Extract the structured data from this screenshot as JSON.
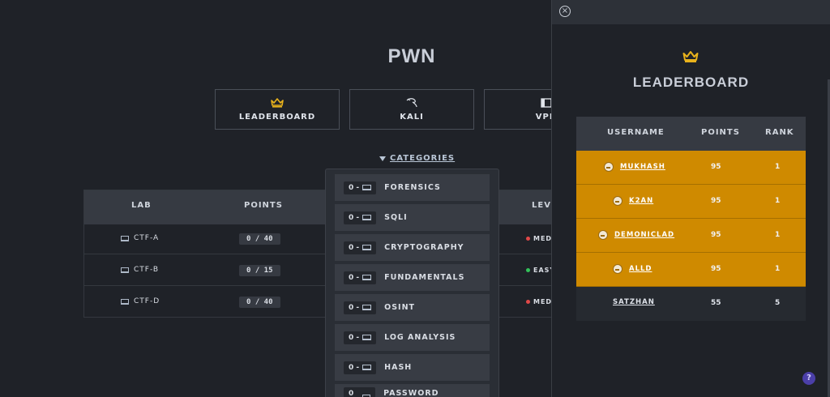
{
  "header": {
    "title": "PWN"
  },
  "nav": [
    {
      "label": "LEADERBOARD",
      "icon": "crown-icon"
    },
    {
      "label": "KALI",
      "icon": "kali-dragon-icon"
    },
    {
      "label": "VPN",
      "icon": "vpn-icon"
    }
  ],
  "categories": {
    "label": "CATEGORIES"
  },
  "labs": {
    "headers": {
      "lab": "LAB",
      "points": "POINTS",
      "level": "LEVEL"
    },
    "rows": [
      {
        "name": "CTF-A",
        "points": "0 / 40",
        "level": "MEDIUM",
        "level_color": "#e04848"
      },
      {
        "name": "CTF-B",
        "points": "0 / 15",
        "level": "EASY",
        "level_color": "#33c25a"
      },
      {
        "name": "CTF-D",
        "points": "0 / 40",
        "level": "MEDIUM",
        "level_color": "#e04848"
      }
    ]
  },
  "dropdown": {
    "items": [
      {
        "count": "0 -",
        "name": "FORENSICS"
      },
      {
        "count": "0 -",
        "name": "SQLI"
      },
      {
        "count": "0 -",
        "name": "CRYPTOGRAPHY"
      },
      {
        "count": "0 -",
        "name": "FUNDAMENTALS"
      },
      {
        "count": "0 -",
        "name": "OSINT"
      },
      {
        "count": "0 -",
        "name": "LOG ANALYSIS"
      },
      {
        "count": "0 -",
        "name": "HASH"
      },
      {
        "count": "0 -",
        "name": "PASSWORD CRACKING"
      }
    ]
  },
  "leaderboard": {
    "title": "LEADERBOARD",
    "close": "×",
    "headers": {
      "username": "USERNAME",
      "points": "POINTS",
      "rank": "RANK"
    },
    "rows": [
      {
        "username": "MUKHASH",
        "points": "95",
        "rank": "1",
        "highlight": true
      },
      {
        "username": "K2AN",
        "points": "95",
        "rank": "1",
        "highlight": true
      },
      {
        "username": "DEMONICLAD",
        "points": "95",
        "rank": "1",
        "highlight": true
      },
      {
        "username": "ALLD",
        "points": "95",
        "rank": "1",
        "highlight": true
      },
      {
        "username": "SATZHAN",
        "points": "55",
        "rank": "5",
        "highlight": false
      }
    ]
  },
  "help": {
    "label": "?"
  },
  "colors": {
    "accent_gold": "#cf8a00",
    "crown": "#e8b21c",
    "help": "#4b3fa8"
  }
}
